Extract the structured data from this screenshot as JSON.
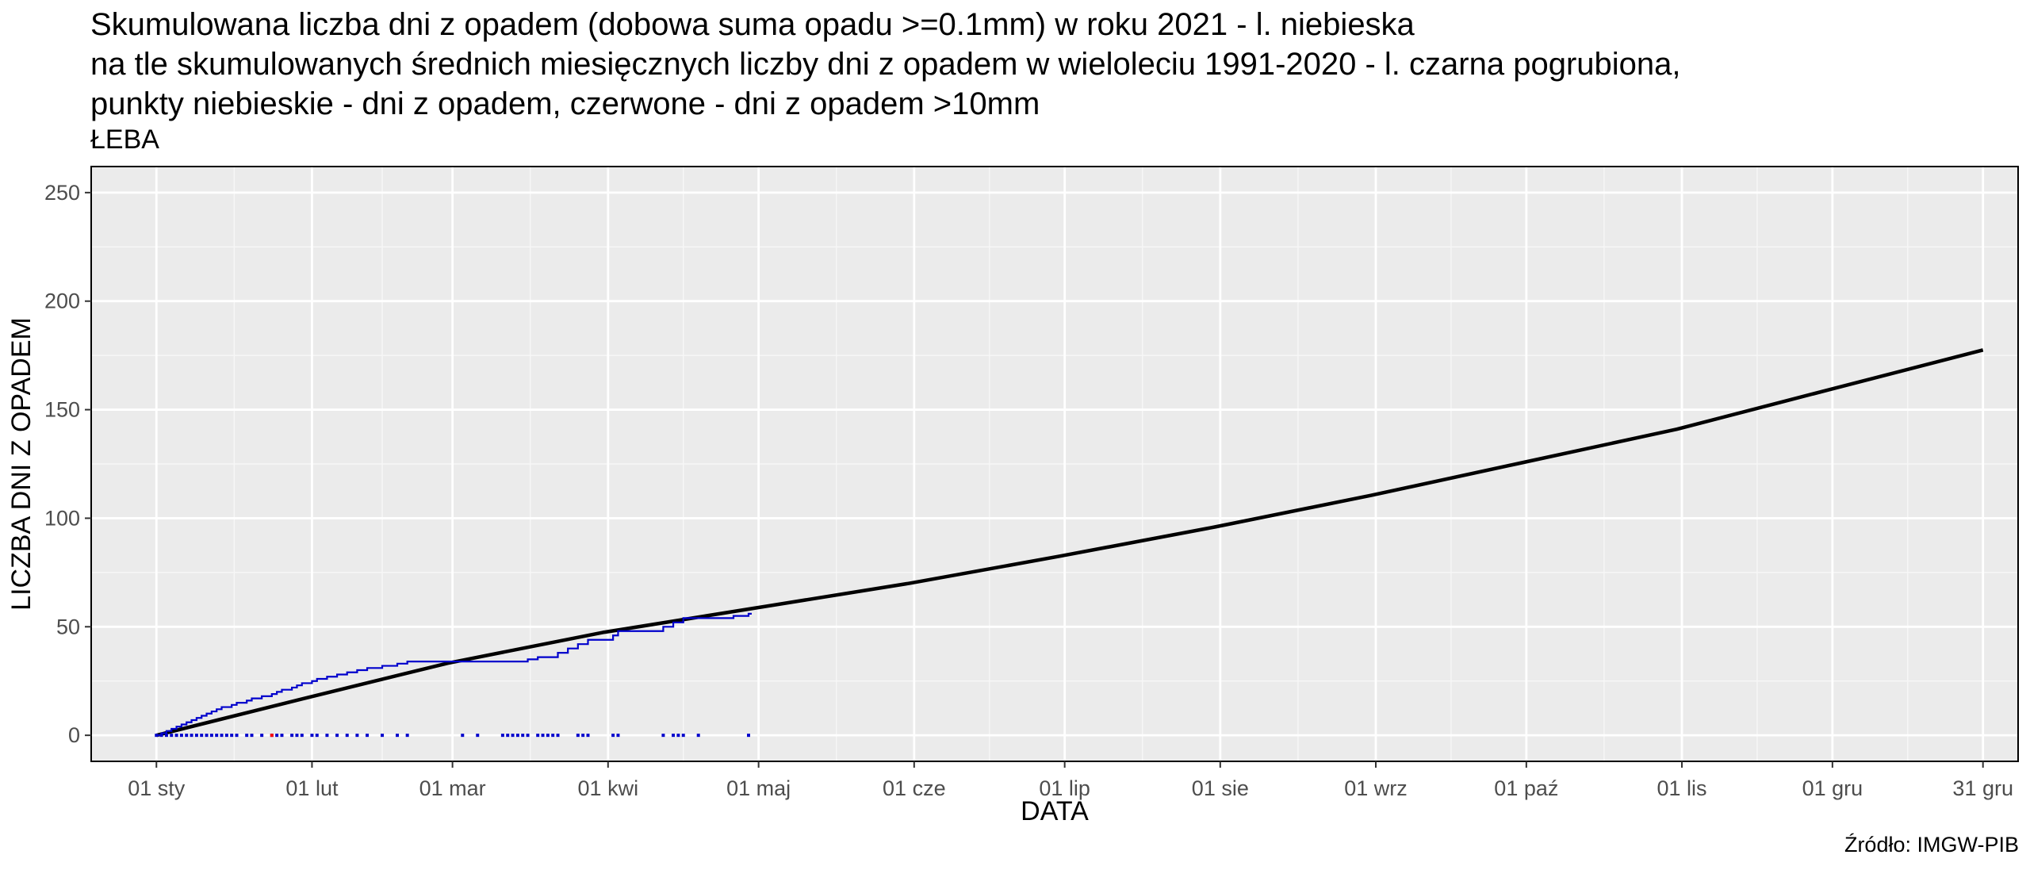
{
  "chart_data": {
    "type": "line",
    "title": [
      "Skumulowana liczba dni z opadem (dobowa suma opadu >=0.1mm) w roku 2021 - l. niebieska",
      "na tle skumulowanych średnich miesięcznych liczby dni z opadem w wieloleciu 1991-2020 - l. czarna pogrubiona,",
      "punkty niebieskie - dni z opadem, czerwone - dni z opadem >10mm"
    ],
    "subtitle": "ŁEBA",
    "caption": "Źródło: IMGW-PIB",
    "xlabel": "DATA",
    "ylabel": "LICZBA DNI Z OPADEM",
    "xlim": [
      "2020-12-19",
      "2022-01-07"
    ],
    "ylim": [
      -12,
      262
    ],
    "x_ticks": [
      {
        "date": "2021-01-01",
        "label": "01 sty"
      },
      {
        "date": "2021-02-01",
        "label": "01 lut"
      },
      {
        "date": "2021-03-01",
        "label": "01 mar"
      },
      {
        "date": "2021-04-01",
        "label": "01 kwi"
      },
      {
        "date": "2021-05-01",
        "label": "01 maj"
      },
      {
        "date": "2021-06-01",
        "label": "01 cze"
      },
      {
        "date": "2021-07-01",
        "label": "01 lip"
      },
      {
        "date": "2021-08-01",
        "label": "01 sie"
      },
      {
        "date": "2021-09-01",
        "label": "01 wrz"
      },
      {
        "date": "2021-10-01",
        "label": "01 paź"
      },
      {
        "date": "2021-11-01",
        "label": "01 lis"
      },
      {
        "date": "2021-12-01",
        "label": "01 gru"
      },
      {
        "date": "2021-12-31",
        "label": "31 gru"
      }
    ],
    "y_ticks": [
      0,
      50,
      100,
      150,
      200,
      250
    ],
    "grid": true,
    "series": [
      {
        "color": "#000000",
        "style": "thick",
        "x": [
          "2021-01-01",
          "2021-01-31",
          "2021-02-28",
          "2021-03-31",
          "2021-04-30",
          "2021-05-31",
          "2021-06-30",
          "2021-07-31",
          "2021-08-31",
          "2021-09-30",
          "2021-10-31",
          "2021-11-30",
          "2021-12-31"
        ],
        "values": [
          0,
          17.3,
          33.2,
          47.4,
          58.5,
          70.0,
          82.5,
          96.0,
          110.5,
          125.5,
          141.0,
          159.0,
          177.5
        ]
      },
      {
        "color": "#0000cc",
        "style": "step",
        "x": [
          "2021-01-01",
          "2021-01-02",
          "2021-01-03",
          "2021-01-04",
          "2021-01-05",
          "2021-01-06",
          "2021-01-07",
          "2021-01-08",
          "2021-01-09",
          "2021-01-10",
          "2021-01-11",
          "2021-01-12",
          "2021-01-13",
          "2021-01-14",
          "2021-01-16",
          "2021-01-17",
          "2021-01-19",
          "2021-01-20",
          "2021-01-22",
          "2021-01-24",
          "2021-01-25",
          "2021-01-26",
          "2021-01-28",
          "2021-01-29",
          "2021-01-30",
          "2021-02-01",
          "2021-02-02",
          "2021-02-04",
          "2021-02-06",
          "2021-02-08",
          "2021-02-10",
          "2021-02-12",
          "2021-02-15",
          "2021-02-18",
          "2021-02-20",
          "2021-03-16",
          "2021-03-18",
          "2021-03-22",
          "2021-03-24",
          "2021-03-26",
          "2021-03-28",
          "2021-04-02",
          "2021-04-03",
          "2021-04-12",
          "2021-04-14",
          "2021-04-16",
          "2021-04-26",
          "2021-04-29"
        ],
        "values": [
          0,
          1,
          2,
          3,
          4,
          5,
          6,
          7,
          8,
          9,
          10,
          11,
          12,
          13,
          14,
          15,
          16,
          17,
          18,
          19,
          20,
          21,
          22,
          23,
          24,
          25,
          26,
          27,
          28,
          29,
          30,
          31,
          32,
          33,
          34,
          35,
          36,
          38,
          40,
          42,
          44,
          46,
          48,
          50,
          52,
          54,
          55,
          56
        ]
      }
    ],
    "points": {
      "rain_days_color": "#0000cc",
      "heavy_rain_color": "#ff0000",
      "rain_days": [
        "2021-01-01",
        "2021-01-02",
        "2021-01-03",
        "2021-01-04",
        "2021-01-05",
        "2021-01-06",
        "2021-01-07",
        "2021-01-08",
        "2021-01-09",
        "2021-01-10",
        "2021-01-11",
        "2021-01-12",
        "2021-01-13",
        "2021-01-14",
        "2021-01-15",
        "2021-01-16",
        "2021-01-17",
        "2021-01-19",
        "2021-01-20",
        "2021-01-22",
        "2021-01-24",
        "2021-01-25",
        "2021-01-26",
        "2021-01-28",
        "2021-01-29",
        "2021-01-30",
        "2021-02-01",
        "2021-02-02",
        "2021-02-04",
        "2021-02-06",
        "2021-02-08",
        "2021-02-10",
        "2021-02-12",
        "2021-02-15",
        "2021-02-18",
        "2021-02-20",
        "2021-03-03",
        "2021-03-06",
        "2021-03-11",
        "2021-03-12",
        "2021-03-13",
        "2021-03-14",
        "2021-03-15",
        "2021-03-16",
        "2021-03-18",
        "2021-03-19",
        "2021-03-20",
        "2021-03-21",
        "2021-03-22",
        "2021-03-26",
        "2021-03-27",
        "2021-03-28",
        "2021-04-02",
        "2021-04-03",
        "2021-04-12",
        "2021-04-14",
        "2021-04-15",
        "2021-04-16",
        "2021-04-19",
        "2021-04-29"
      ],
      "heavy_rain_days": [
        "2021-01-24"
      ]
    }
  }
}
